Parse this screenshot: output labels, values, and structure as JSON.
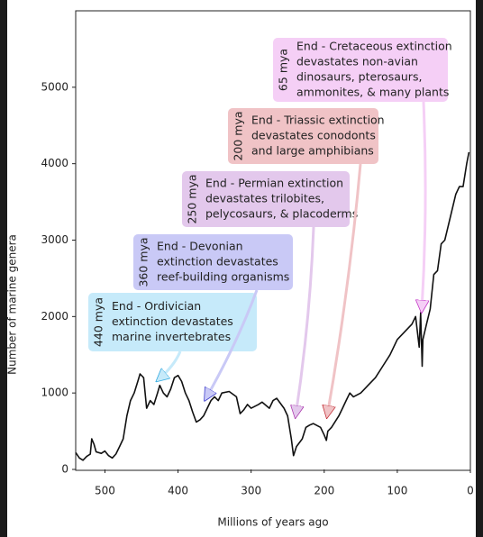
{
  "chart_data": {
    "type": "line",
    "x_label": "Millions of years ago",
    "y_label": "Number of marine genera",
    "xlim": [
      540,
      0
    ],
    "xticks": [
      500,
      400,
      300,
      200,
      100,
      0
    ],
    "ylim": [
      0,
      6000
    ],
    "yticks": [
      0,
      1000,
      2000,
      3000,
      4000,
      5000
    ],
    "color": "#111111",
    "x": [
      540,
      535,
      530,
      525,
      520,
      518,
      515,
      512,
      505,
      500,
      495,
      490,
      485,
      480,
      475,
      470,
      465,
      460,
      455,
      452,
      447,
      443,
      438,
      433,
      428,
      425,
      420,
      415,
      410,
      405,
      400,
      395,
      390,
      385,
      380,
      375,
      370,
      365,
      360,
      355,
      350,
      345,
      340,
      330,
      320,
      315,
      310,
      305,
      300,
      290,
      285,
      275,
      270,
      265,
      255,
      250,
      245,
      242,
      238,
      230,
      225,
      220,
      215,
      205,
      200,
      197,
      195,
      190,
      180,
      175,
      170,
      165,
      160,
      150,
      145,
      140,
      130,
      120,
      110,
      100,
      90,
      80,
      75,
      70,
      68,
      66,
      65,
      60,
      55,
      50,
      45,
      40,
      35,
      30,
      20,
      15,
      10,
      5,
      2
    ],
    "values": [
      220,
      150,
      120,
      170,
      200,
      400,
      330,
      230,
      210,
      240,
      180,
      150,
      200,
      300,
      400,
      700,
      900,
      1000,
      1150,
      1250,
      1200,
      800,
      900,
      850,
      1000,
      1100,
      1000,
      950,
      1050,
      1200,
      1230,
      1150,
      1000,
      900,
      750,
      620,
      650,
      700,
      800,
      900,
      950,
      900,
      1000,
      1020,
      950,
      730,
      780,
      850,
      800,
      850,
      880,
      800,
      900,
      930,
      800,
      700,
      400,
      180,
      300,
      400,
      550,
      580,
      600,
      550,
      450,
      380,
      500,
      550,
      700,
      800,
      900,
      1000,
      950,
      1000,
      1050,
      1100,
      1200,
      1350,
      1500,
      1700,
      1800,
      1900,
      2000,
      1600,
      2050,
      1350,
      1700,
      1900,
      2100,
      2550,
      2600,
      2950,
      3000,
      3200,
      3600,
      3700,
      3700,
      4000,
      4150
    ],
    "annotations": [
      {
        "mya": "440 mya",
        "lines": [
          "End - Ordivician",
          "extinction devastates",
          "marine invertebrates"
        ],
        "fill": "#c6eafa",
        "text_color": "#2aa6de"
      },
      {
        "mya": "360 mya",
        "lines": [
          "End - Devonian",
          "extinction devastates",
          "reef-building organisms"
        ],
        "fill": "#c9c9f6",
        "text_color": "#3434c8"
      },
      {
        "mya": "250 mya",
        "lines": [
          "End - Permian extinction",
          "devastates trilobites,",
          "pelycosaurs, & placoderms"
        ],
        "fill": "#e3c8ec",
        "text_color": "#a935ab"
      },
      {
        "mya": "200 mya",
        "lines": [
          "End - Triassic extinction",
          "devastates conodonts",
          "and large amphibians"
        ],
        "fill": "#f0c3c6",
        "text_color": "#c0262e"
      },
      {
        "mya": "65 mya",
        "lines": [
          "End - Cretaceous extinction",
          "devastates non-avian",
          "dinosaurs, pterosaurs,",
          "ammonites, & many plants"
        ],
        "fill": "#f5cff6",
        "text_color": "#c22ec4"
      }
    ]
  }
}
